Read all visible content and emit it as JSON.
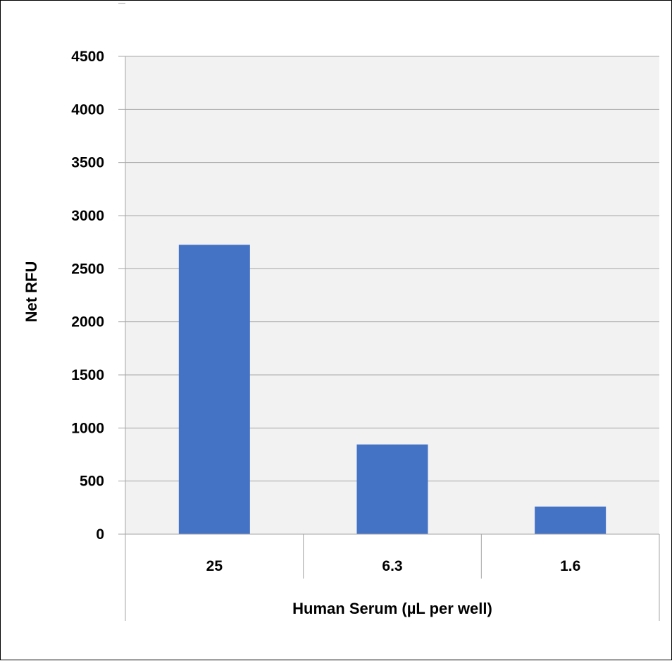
{
  "chart_data": {
    "type": "bar",
    "title": "",
    "xlabel": "Human Serum (µL per well)",
    "ylabel": "Net RFU",
    "categories": [
      "25",
      "6.3",
      "1.6"
    ],
    "values": [
      2725,
      845,
      260
    ],
    "ylim": [
      0,
      4500
    ],
    "yticks": [
      0,
      500,
      1000,
      1500,
      2000,
      2500,
      3000,
      3500,
      4000,
      4500
    ],
    "grid": true,
    "legend": "none",
    "colors": {
      "bar": "#4472C4",
      "plot_background": "#F2F2F2",
      "gridline": "#A6A6A6",
      "axis": "#A6A6A6"
    }
  }
}
